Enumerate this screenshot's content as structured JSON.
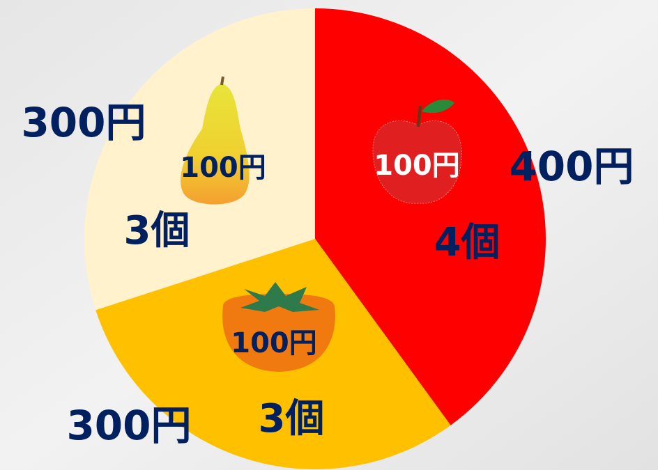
{
  "chart_data": {
    "type": "pie",
    "values": [
      400,
      300,
      300
    ],
    "value_labels": [
      "400円",
      "300円",
      "300円"
    ],
    "count_labels": [
      "4個",
      "3個",
      "3個"
    ],
    "price_labels": [
      "100円",
      "100円",
      "100円"
    ],
    "colors": [
      "#ff0000",
      "#ffc000",
      "#fff2cc"
    ],
    "start_angle": 0,
    "direction": "clockwise"
  }
}
